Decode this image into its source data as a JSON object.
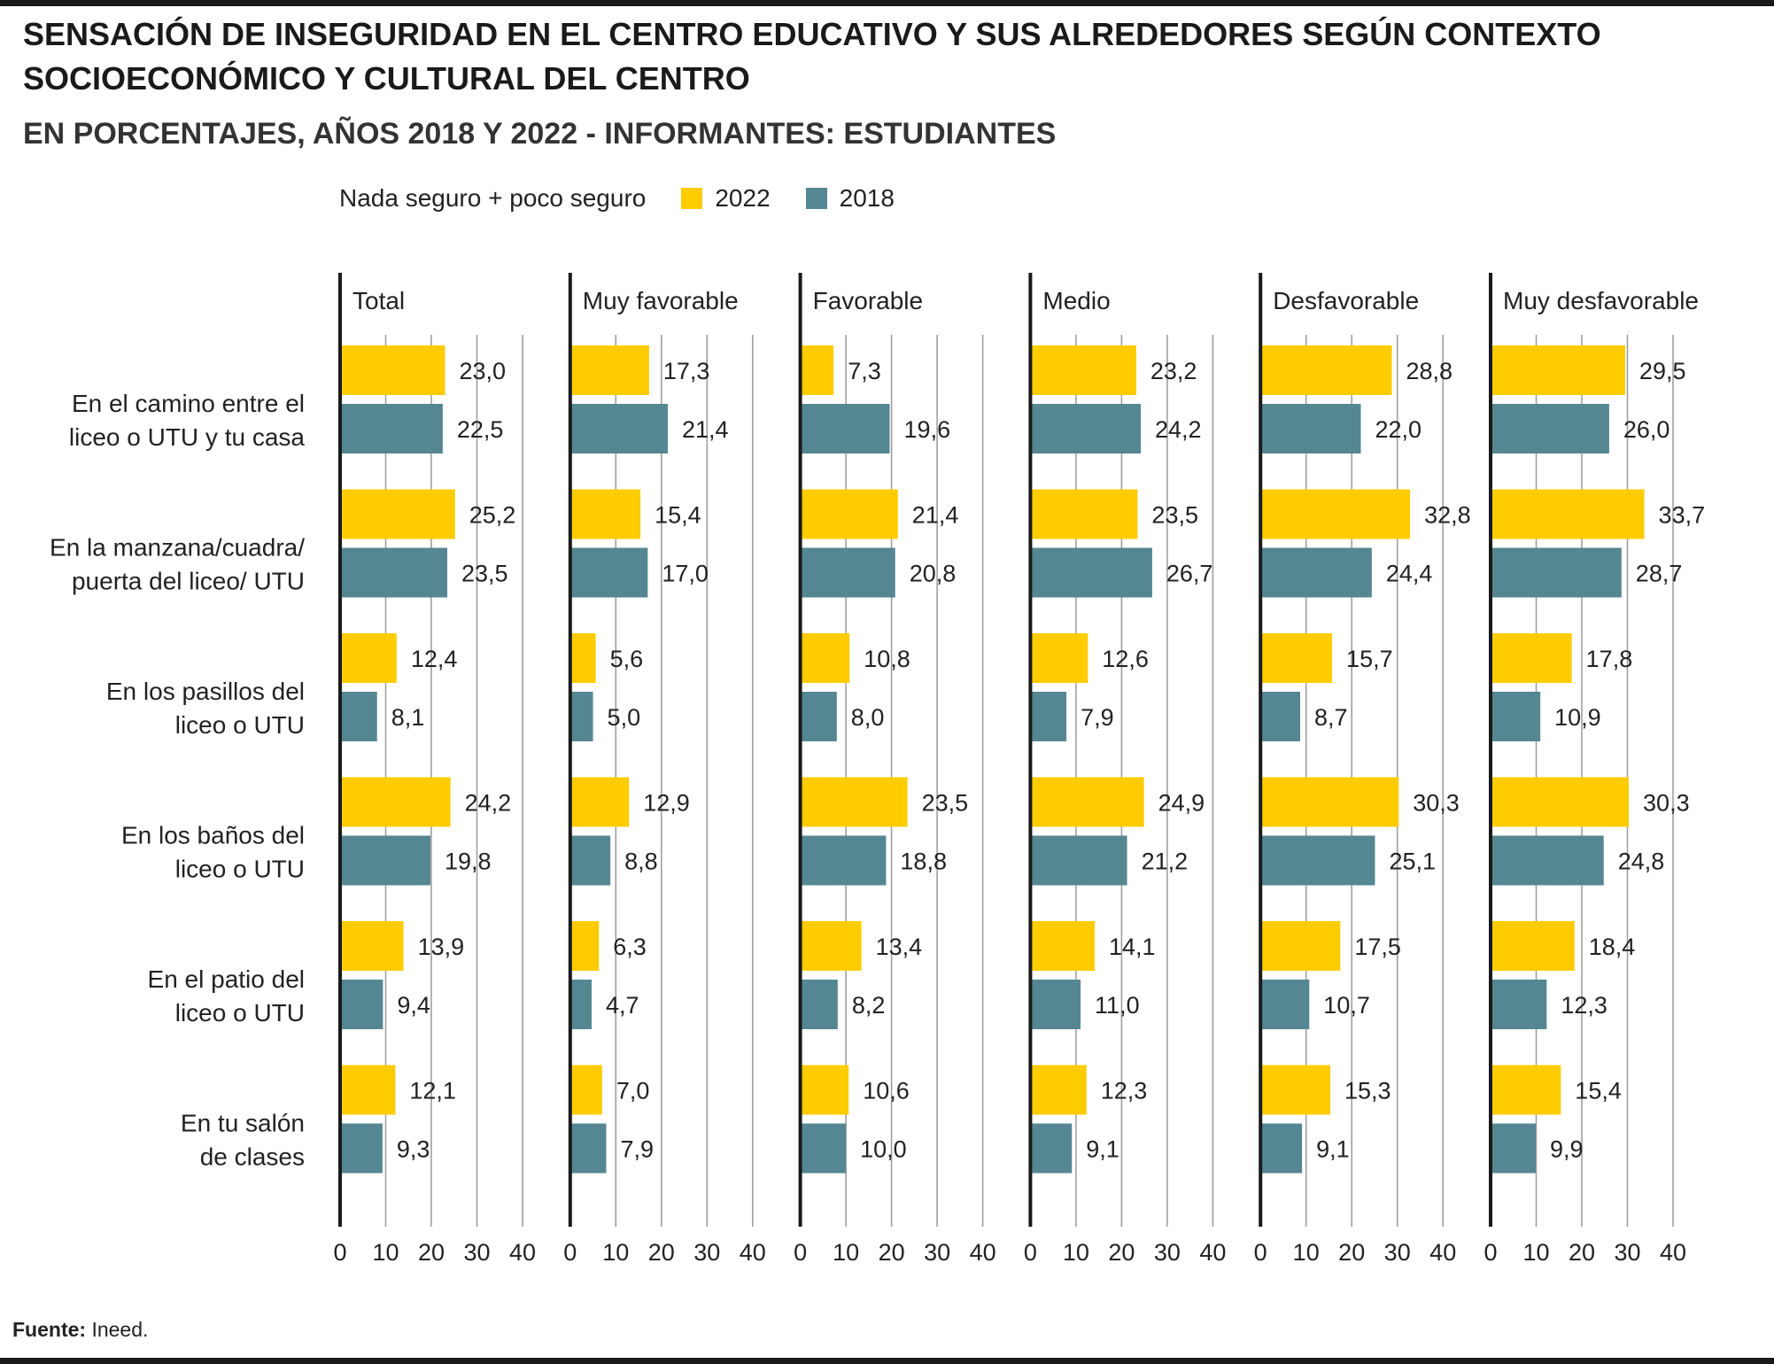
{
  "title": "SENSACIÓN DE INSEGURIDAD EN EL CENTRO EDUCATIVO Y SUS ALREDEDORES SEGÚN CONTEXTO SOCIOECONÓMICO Y CULTURAL DEL CENTRO",
  "subtitle": "EN PORCENTAJES, AÑOS 2018 Y 2022 - INFORMANTES: ESTUDIANTES",
  "legend": {
    "label": "Nada seguro + poco seguro",
    "items": [
      {
        "name": "2022",
        "color": "#FFCC00"
      },
      {
        "name": "2018",
        "color": "#548792"
      }
    ]
  },
  "source": {
    "label": "Fuente:",
    "text": "Ineed."
  },
  "chart_data": {
    "type": "bar",
    "orientation": "horizontal",
    "xlim": [
      0,
      40
    ],
    "xticks": [
      "0",
      "10",
      "20",
      "30",
      "40"
    ],
    "grid": true,
    "legend_position": "top",
    "categories": [
      [
        "En el camino entre el",
        "liceo o UTU y tu casa"
      ],
      [
        "En la manzana/cuadra/",
        "puerta del liceo/ UTU"
      ],
      [
        "En los pasillos del",
        "liceo o UTU"
      ],
      [
        "En los baños del",
        "liceo o UTU"
      ],
      [
        "En el patio del",
        "liceo o UTU"
      ],
      [
        "En tu salón",
        "de clases"
      ]
    ],
    "panels": [
      {
        "name": "Total",
        "series": [
          {
            "name": "2022",
            "values": [
              23.0,
              25.2,
              12.4,
              24.2,
              13.9,
              12.1
            ],
            "labels": [
              "23,0",
              "25,2",
              "12,4",
              "24,2",
              "13,9",
              "12,1"
            ]
          },
          {
            "name": "2018",
            "values": [
              22.5,
              23.5,
              8.1,
              19.8,
              9.4,
              9.3
            ],
            "labels": [
              "22,5",
              "23,5",
              "8,1",
              "19,8",
              "9,4",
              "9,3"
            ]
          }
        ]
      },
      {
        "name": "Muy favorable",
        "series": [
          {
            "name": "2022",
            "values": [
              17.3,
              15.4,
              5.6,
              12.9,
              6.3,
              7.0
            ],
            "labels": [
              "17,3",
              "15,4",
              "5,6",
              "12,9",
              "6,3",
              "7,0"
            ]
          },
          {
            "name": "2018",
            "values": [
              21.4,
              17.0,
              5.0,
              8.8,
              4.7,
              7.9
            ],
            "labels": [
              "21,4",
              "17,0",
              "5,0",
              "8,8",
              "4,7",
              "7,9"
            ]
          }
        ]
      },
      {
        "name": "Favorable",
        "series": [
          {
            "name": "2022",
            "values": [
              7.3,
              21.4,
              10.8,
              23.5,
              13.4,
              10.6
            ],
            "labels": [
              "7,3",
              "21,4",
              "10,8",
              "23,5",
              "13,4",
              "10,6"
            ]
          },
          {
            "name": "2018",
            "values": [
              19.6,
              20.8,
              8.0,
              18.8,
              8.2,
              10.0
            ],
            "labels": [
              "19,6",
              "20,8",
              "8,0",
              "18,8",
              "8,2",
              "10,0"
            ]
          }
        ]
      },
      {
        "name": "Medio",
        "series": [
          {
            "name": "2022",
            "values": [
              23.2,
              23.5,
              12.6,
              24.9,
              14.1,
              12.3
            ],
            "labels": [
              "23,2",
              "23,5",
              "12,6",
              "24,9",
              "14,1",
              "12,3"
            ]
          },
          {
            "name": "2018",
            "values": [
              24.2,
              26.7,
              7.9,
              21.2,
              11.0,
              9.1
            ],
            "labels": [
              "24,2",
              "26,7",
              "7,9",
              "21,2",
              "11,0",
              "9,1"
            ]
          }
        ]
      },
      {
        "name": "Desfavorable",
        "series": [
          {
            "name": "2022",
            "values": [
              28.8,
              32.8,
              15.7,
              30.3,
              17.5,
              15.3
            ],
            "labels": [
              "28,8",
              "32,8",
              "15,7",
              "30,3",
              "17,5",
              "15,3"
            ]
          },
          {
            "name": "2018",
            "values": [
              22.0,
              24.4,
              8.7,
              25.1,
              10.7,
              9.1
            ],
            "labels": [
              "22,0",
              "24,4",
              "8,7",
              "25,1",
              "10,7",
              "9,1"
            ]
          }
        ]
      },
      {
        "name": "Muy desfavorable",
        "series": [
          {
            "name": "2022",
            "values": [
              29.5,
              33.7,
              17.8,
              30.3,
              18.4,
              15.4
            ],
            "labels": [
              "29,5",
              "33,7",
              "17,8",
              "30,3",
              "18,4",
              "15,4"
            ]
          },
          {
            "name": "2018",
            "values": [
              26.0,
              28.7,
              10.9,
              24.8,
              12.3,
              9.9
            ],
            "labels": [
              "26,0",
              "28,7",
              "10,9",
              "24,8",
              "12,3",
              "9,9"
            ]
          }
        ]
      }
    ]
  }
}
